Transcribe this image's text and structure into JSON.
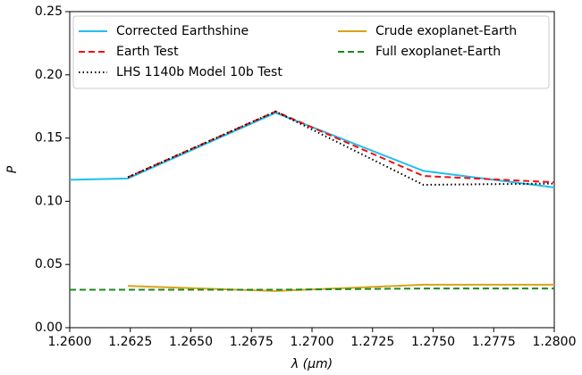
{
  "chart_data": {
    "type": "line",
    "xlabel": "λ (μm)",
    "ylabel": "P",
    "x": [
      1.26,
      1.2624,
      1.2685,
      1.2746,
      1.28
    ],
    "series": [
      {
        "name": "Corrected Earthshine",
        "color": "#1fbfef",
        "linestyle": "solid",
        "values": [
          0.117,
          0.118,
          0.17,
          0.124,
          0.111
        ]
      },
      {
        "name": "Earth Test",
        "color": "#ee1111",
        "linestyle": "dashed",
        "values": [
          null,
          0.119,
          0.171,
          0.12,
          0.115
        ]
      },
      {
        "name": "LHS 1140b Model 10b Test",
        "color": "#000000",
        "linestyle": "dotted",
        "values": [
          null,
          0.119,
          0.171,
          0.113,
          0.114
        ]
      },
      {
        "name": "Crude exoplanet-Earth",
        "color": "#d9a21b",
        "linestyle": "solid",
        "values": [
          null,
          0.033,
          0.029,
          0.034,
          0.034
        ]
      },
      {
        "name": "Full exoplanet-Earth",
        "color": "#1a8a1a",
        "linestyle": "dashed",
        "values": [
          0.03,
          0.03,
          0.03,
          0.031,
          0.031
        ]
      }
    ],
    "xlim": [
      1.26,
      1.28
    ],
    "xticks": [
      {
        "value": 1.26,
        "label": "1.2600"
      },
      {
        "value": 1.2625,
        "label": "1.2625"
      },
      {
        "value": 1.265,
        "label": "1.2650"
      },
      {
        "value": 1.2675,
        "label": "1.2675"
      },
      {
        "value": 1.27,
        "label": "1.2700"
      },
      {
        "value": 1.2725,
        "label": "1.2725"
      },
      {
        "value": 1.275,
        "label": "1.2750"
      },
      {
        "value": 1.2775,
        "label": "1.2775"
      },
      {
        "value": 1.28,
        "label": "1.2800"
      }
    ],
    "ylim": [
      0,
      0.25
    ],
    "yticks": [
      {
        "value": 0,
        "label": "0.00"
      },
      {
        "value": 0.05,
        "label": "0.05"
      },
      {
        "value": 0.1,
        "label": "0.10"
      },
      {
        "value": 0.15,
        "label": "0.15"
      },
      {
        "value": 0.2,
        "label": "0.20"
      },
      {
        "value": 0.25,
        "label": "0.25"
      }
    ],
    "grid": false,
    "legend": "top",
    "legend_columns": 2
  }
}
